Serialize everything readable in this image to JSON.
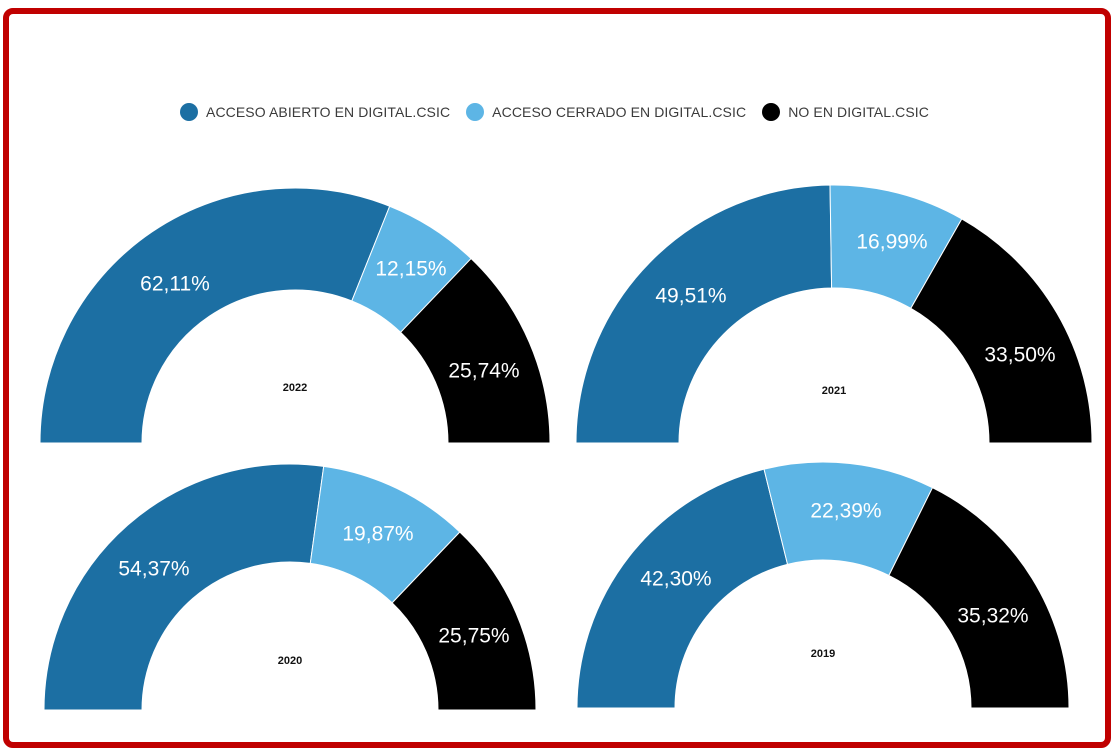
{
  "legend": [
    {
      "label": "ACCESO ABIERTO EN DIGITAL.CSIC",
      "color": "#1c6fa3"
    },
    {
      "label": "ACCESO CERRADO EN DIGITAL.CSIC",
      "color": "#5db5e5"
    },
    {
      "label": "NO EN DIGITAL.CSIC",
      "color": "#000000"
    }
  ],
  "chart_data": [
    {
      "type": "pie",
      "center_label": "2022",
      "categories": [
        "ACCESO ABIERTO EN DIGITAL.CSIC",
        "ACCESO CERRADO EN DIGITAL.CSIC",
        "NO EN DIGITAL.CSIC"
      ],
      "values": [
        62.11,
        12.15,
        25.74
      ],
      "labels": [
        "62,11%",
        "12,15%",
        "25,74%"
      ]
    },
    {
      "type": "pie",
      "center_label": "2021",
      "categories": [
        "ACCESO ABIERTO EN DIGITAL.CSIC",
        "ACCESO CERRADO EN DIGITAL.CSIC",
        "NO EN DIGITAL.CSIC"
      ],
      "values": [
        49.51,
        16.99,
        33.5
      ],
      "labels": [
        "49,51%",
        "16,99%",
        "33,50%"
      ]
    },
    {
      "type": "pie",
      "center_label": "2020",
      "categories": [
        "ACCESO ABIERTO EN DIGITAL.CSIC",
        "ACCESO CERRADO EN DIGITAL.CSIC",
        "NO EN DIGITAL.CSIC"
      ],
      "values": [
        54.37,
        19.87,
        25.75
      ],
      "labels": [
        "54,37%",
        "19,87%",
        "25,75%"
      ]
    },
    {
      "type": "pie",
      "center_label": "2019",
      "categories": [
        "ACCESO ABIERTO EN DIGITAL.CSIC",
        "ACCESO CERRADO EN DIGITAL.CSIC",
        "NO EN DIGITAL.CSIC"
      ],
      "values": [
        42.3,
        22.39,
        35.32
      ],
      "labels": [
        "42,30%",
        "22,39%",
        "35,32%"
      ]
    }
  ]
}
